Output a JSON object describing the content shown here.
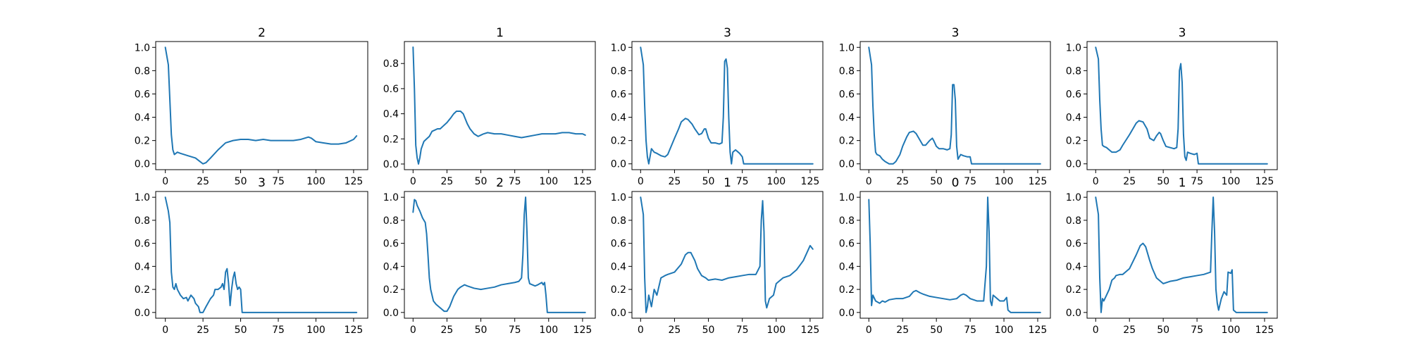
{
  "colors": {
    "line": "#1f77b4",
    "axes": "#000000",
    "background": "#ffffff"
  },
  "chart_data": [
    {
      "type": "line",
      "title": "2",
      "xlim": [
        -6.4,
        134.4
      ],
      "ylim": [
        -0.05,
        1.05
      ],
      "xticks": [
        0,
        25,
        50,
        75,
        100,
        125
      ],
      "yticks": [
        0.0,
        0.2,
        0.4,
        0.6,
        0.8,
        1.0
      ],
      "ytick_decimals": 1,
      "x": [
        0,
        2,
        3,
        4,
        5,
        6,
        8,
        10,
        15,
        20,
        23,
        25,
        27,
        30,
        35,
        40,
        45,
        50,
        55,
        60,
        65,
        70,
        75,
        80,
        85,
        90,
        95,
        97,
        100,
        105,
        110,
        115,
        120,
        125,
        127
      ],
      "y": [
        1.0,
        0.85,
        0.55,
        0.25,
        0.12,
        0.08,
        0.1,
        0.09,
        0.07,
        0.05,
        0.02,
        0.0,
        0.01,
        0.05,
        0.12,
        0.18,
        0.2,
        0.21,
        0.21,
        0.2,
        0.21,
        0.2,
        0.2,
        0.2,
        0.2,
        0.21,
        0.23,
        0.22,
        0.19,
        0.18,
        0.17,
        0.17,
        0.18,
        0.21,
        0.24
      ]
    },
    {
      "type": "line",
      "title": "1",
      "xlim": [
        -6.4,
        134.4
      ],
      "ylim": [
        -0.045,
        0.975
      ],
      "xticks": [
        0,
        25,
        50,
        75,
        100,
        125
      ],
      "yticks": [
        0.0,
        0.2,
        0.4,
        0.6,
        0.8
      ],
      "ytick_decimals": 1,
      "x": [
        0,
        1,
        2,
        3,
        4,
        5,
        6,
        8,
        10,
        12,
        14,
        16,
        18,
        20,
        22,
        25,
        28,
        30,
        32,
        35,
        37,
        40,
        42,
        45,
        48,
        50,
        52,
        55,
        60,
        65,
        70,
        75,
        80,
        85,
        90,
        95,
        100,
        105,
        110,
        115,
        120,
        125,
        127
      ],
      "y": [
        0.93,
        0.6,
        0.15,
        0.05,
        0.0,
        0.05,
        0.12,
        0.18,
        0.2,
        0.22,
        0.26,
        0.27,
        0.28,
        0.28,
        0.3,
        0.33,
        0.37,
        0.4,
        0.42,
        0.42,
        0.4,
        0.32,
        0.28,
        0.24,
        0.22,
        0.23,
        0.24,
        0.25,
        0.24,
        0.24,
        0.23,
        0.22,
        0.21,
        0.22,
        0.23,
        0.24,
        0.24,
        0.24,
        0.25,
        0.25,
        0.24,
        0.24,
        0.23
      ]
    },
    {
      "type": "line",
      "title": "3",
      "xlim": [
        -6.4,
        134.4
      ],
      "ylim": [
        -0.05,
        1.05
      ],
      "xticks": [
        0,
        25,
        50,
        75,
        100,
        125
      ],
      "yticks": [
        0.0,
        0.2,
        0.4,
        0.6,
        0.8,
        1.0
      ],
      "ytick_decimals": 1,
      "x": [
        0,
        2,
        3,
        4,
        5,
        6,
        8,
        10,
        12,
        15,
        18,
        20,
        25,
        28,
        30,
        33,
        35,
        38,
        40,
        43,
        45,
        47,
        48,
        50,
        52,
        55,
        58,
        60,
        61,
        62,
        63,
        64,
        65,
        66,
        67,
        68,
        70,
        72,
        73,
        75,
        76,
        80,
        90,
        100,
        110,
        120,
        127
      ],
      "y": [
        1.0,
        0.85,
        0.5,
        0.2,
        0.06,
        0.0,
        0.13,
        0.1,
        0.09,
        0.07,
        0.06,
        0.08,
        0.22,
        0.3,
        0.36,
        0.39,
        0.38,
        0.34,
        0.3,
        0.25,
        0.26,
        0.3,
        0.3,
        0.22,
        0.18,
        0.18,
        0.17,
        0.18,
        0.4,
        0.88,
        0.9,
        0.82,
        0.4,
        0.1,
        0.0,
        0.1,
        0.12,
        0.1,
        0.09,
        0.06,
        0.0,
        0.0,
        0.0,
        0.0,
        0.0,
        0.0,
        0.0
      ]
    },
    {
      "type": "line",
      "title": "3",
      "xlim": [
        -6.4,
        134.4
      ],
      "ylim": [
        -0.05,
        1.05
      ],
      "xticks": [
        0,
        25,
        50,
        75,
        100,
        125
      ],
      "yticks": [
        0.0,
        0.2,
        0.4,
        0.6,
        0.8,
        1.0
      ],
      "ytick_decimals": 1,
      "x": [
        0,
        2,
        3,
        4,
        5,
        6,
        8,
        10,
        12,
        15,
        18,
        20,
        23,
        25,
        28,
        30,
        33,
        35,
        38,
        40,
        42,
        45,
        47,
        48,
        50,
        52,
        55,
        58,
        60,
        61,
        62,
        63,
        64,
        65,
        66,
        67,
        68,
        70,
        73,
        75,
        76,
        80,
        90,
        100,
        110,
        120,
        127
      ],
      "y": [
        1.0,
        0.85,
        0.5,
        0.25,
        0.1,
        0.08,
        0.07,
        0.04,
        0.02,
        0.0,
        0.0,
        0.02,
        0.08,
        0.15,
        0.23,
        0.27,
        0.28,
        0.26,
        0.2,
        0.16,
        0.16,
        0.2,
        0.22,
        0.2,
        0.15,
        0.13,
        0.13,
        0.12,
        0.13,
        0.25,
        0.68,
        0.68,
        0.55,
        0.15,
        0.04,
        0.06,
        0.08,
        0.07,
        0.06,
        0.06,
        0.0,
        0.0,
        0.0,
        0.0,
        0.0,
        0.0,
        0.0
      ]
    },
    {
      "type": "line",
      "title": "3",
      "xlim": [
        -6.4,
        134.4
      ],
      "ylim": [
        -0.05,
        1.05
      ],
      "xticks": [
        0,
        25,
        50,
        75,
        100,
        125
      ],
      "yticks": [
        0.0,
        0.2,
        0.4,
        0.6,
        0.8,
        1.0
      ],
      "ytick_decimals": 1,
      "x": [
        0,
        2,
        3,
        4,
        5,
        6,
        8,
        10,
        12,
        15,
        18,
        20,
        25,
        28,
        30,
        32,
        35,
        38,
        40,
        43,
        45,
        47,
        48,
        50,
        52,
        55,
        58,
        60,
        61,
        62,
        63,
        64,
        65,
        66,
        67,
        68,
        70,
        73,
        75,
        76,
        80,
        90,
        100,
        110,
        120,
        127
      ],
      "y": [
        1.0,
        0.9,
        0.55,
        0.3,
        0.16,
        0.15,
        0.14,
        0.12,
        0.1,
        0.1,
        0.12,
        0.16,
        0.25,
        0.31,
        0.35,
        0.37,
        0.36,
        0.3,
        0.22,
        0.2,
        0.24,
        0.27,
        0.26,
        0.2,
        0.15,
        0.14,
        0.13,
        0.14,
        0.3,
        0.8,
        0.86,
        0.7,
        0.25,
        0.06,
        0.03,
        0.1,
        0.09,
        0.08,
        0.09,
        0.0,
        0.0,
        0.0,
        0.0,
        0.0,
        0.0,
        0.0
      ]
    },
    {
      "type": "line",
      "title": "3",
      "xlim": [
        -6.4,
        134.4
      ],
      "ylim": [
        -0.05,
        1.05
      ],
      "xticks": [
        0,
        25,
        50,
        75,
        100,
        125
      ],
      "yticks": [
        0.0,
        0.2,
        0.4,
        0.6,
        0.8,
        1.0
      ],
      "ytick_decimals": 1,
      "x": [
        0,
        2,
        3,
        4,
        5,
        6,
        7,
        8,
        10,
        12,
        14,
        15,
        17,
        19,
        20,
        22,
        23,
        25,
        27,
        30,
        32,
        33,
        35,
        37,
        38,
        39,
        40,
        41,
        42,
        43,
        44,
        45,
        46,
        47,
        48,
        49,
        50,
        51,
        52,
        55,
        60,
        70,
        80,
        90,
        100,
        110,
        120,
        127
      ],
      "y": [
        1.0,
        0.88,
        0.78,
        0.35,
        0.22,
        0.2,
        0.25,
        0.2,
        0.15,
        0.12,
        0.13,
        0.1,
        0.15,
        0.12,
        0.08,
        0.05,
        0.0,
        0.0,
        0.05,
        0.12,
        0.15,
        0.2,
        0.2,
        0.22,
        0.25,
        0.2,
        0.35,
        0.38,
        0.25,
        0.06,
        0.2,
        0.3,
        0.35,
        0.25,
        0.2,
        0.22,
        0.2,
        0.0,
        0.0,
        0.0,
        0.0,
        0.0,
        0.0,
        0.0,
        0.0,
        0.0,
        0.0,
        0.0
      ]
    },
    {
      "type": "line",
      "title": "2",
      "xlim": [
        -6.4,
        134.4
      ],
      "ylim": [
        -0.05,
        1.05
      ],
      "xticks": [
        0,
        25,
        50,
        75,
        100,
        125
      ],
      "yticks": [
        0.0,
        0.2,
        0.4,
        0.6,
        0.8,
        1.0
      ],
      "ytick_decimals": 1,
      "x": [
        0,
        1,
        2,
        3,
        5,
        7,
        9,
        10,
        11,
        12,
        13,
        14,
        15,
        17,
        20,
        23,
        25,
        27,
        30,
        33,
        35,
        38,
        40,
        45,
        50,
        55,
        60,
        65,
        70,
        75,
        78,
        80,
        81,
        82,
        83,
        84,
        85,
        86,
        88,
        90,
        92,
        95,
        96,
        97,
        98,
        99,
        100,
        105,
        110,
        120,
        127
      ],
      "y": [
        0.87,
        0.98,
        0.97,
        0.93,
        0.88,
        0.82,
        0.78,
        0.68,
        0.5,
        0.3,
        0.2,
        0.15,
        0.1,
        0.07,
        0.04,
        0.01,
        0.01,
        0.05,
        0.14,
        0.2,
        0.22,
        0.24,
        0.23,
        0.21,
        0.2,
        0.21,
        0.22,
        0.24,
        0.25,
        0.26,
        0.27,
        0.3,
        0.5,
        0.85,
        1.0,
        0.7,
        0.3,
        0.25,
        0.24,
        0.23,
        0.24,
        0.26,
        0.24,
        0.26,
        0.15,
        0.0,
        0.0,
        0.0,
        0.0,
        0.0,
        0.0
      ]
    },
    {
      "type": "line",
      "title": "1",
      "xlim": [
        -6.4,
        134.4
      ],
      "ylim": [
        -0.05,
        1.05
      ],
      "xticks": [
        0,
        25,
        50,
        75,
        100,
        125
      ],
      "yticks": [
        0.0,
        0.2,
        0.4,
        0.6,
        0.8,
        1.0
      ],
      "ytick_decimals": 1,
      "x": [
        0,
        2,
        3,
        4,
        5,
        6,
        8,
        10,
        12,
        14,
        15,
        18,
        20,
        25,
        30,
        33,
        35,
        37,
        40,
        42,
        45,
        48,
        50,
        55,
        60,
        65,
        70,
        75,
        80,
        85,
        88,
        89,
        90,
        91,
        92,
        93,
        94,
        95,
        98,
        100,
        105,
        110,
        115,
        120,
        125,
        127
      ],
      "y": [
        1.0,
        0.85,
        0.3,
        0.0,
        0.05,
        0.15,
        0.05,
        0.2,
        0.15,
        0.25,
        0.3,
        0.32,
        0.33,
        0.35,
        0.42,
        0.5,
        0.52,
        0.52,
        0.45,
        0.38,
        0.32,
        0.3,
        0.28,
        0.29,
        0.28,
        0.3,
        0.31,
        0.32,
        0.33,
        0.33,
        0.4,
        0.8,
        0.97,
        0.7,
        0.1,
        0.04,
        0.08,
        0.12,
        0.15,
        0.25,
        0.3,
        0.32,
        0.37,
        0.45,
        0.58,
        0.55
      ]
    },
    {
      "type": "line",
      "title": "0",
      "xlim": [
        -6.4,
        134.4
      ],
      "ylim": [
        -0.05,
        1.05
      ],
      "xticks": [
        0,
        25,
        50,
        75,
        100,
        125
      ],
      "yticks": [
        0.0,
        0.2,
        0.4,
        0.6,
        0.8,
        1.0
      ],
      "ytick_decimals": 1,
      "x": [
        0,
        1,
        2,
        3,
        5,
        8,
        10,
        12,
        15,
        20,
        25,
        30,
        33,
        35,
        38,
        40,
        45,
        50,
        55,
        60,
        65,
        68,
        70,
        72,
        75,
        80,
        85,
        87,
        88,
        89,
        90,
        91,
        92,
        95,
        97,
        100,
        102,
        103,
        105,
        110,
        120,
        127
      ],
      "y": [
        0.98,
        0.6,
        0.06,
        0.15,
        0.1,
        0.08,
        0.1,
        0.09,
        0.11,
        0.12,
        0.12,
        0.14,
        0.18,
        0.19,
        0.17,
        0.16,
        0.14,
        0.13,
        0.12,
        0.11,
        0.12,
        0.15,
        0.16,
        0.15,
        0.12,
        0.1,
        0.1,
        0.4,
        1.0,
        0.7,
        0.1,
        0.06,
        0.15,
        0.12,
        0.1,
        0.1,
        0.13,
        0.02,
        0.0,
        0.0,
        0.0,
        0.0
      ]
    },
    {
      "type": "line",
      "title": "1",
      "xlim": [
        -6.4,
        134.4
      ],
      "ylim": [
        -0.05,
        1.05
      ],
      "xticks": [
        0,
        25,
        50,
        75,
        100,
        125
      ],
      "yticks": [
        0.0,
        0.2,
        0.4,
        0.6,
        0.8,
        1.0
      ],
      "ytick_decimals": 1,
      "x": [
        0,
        2,
        3,
        4,
        5,
        6,
        8,
        10,
        12,
        14,
        15,
        18,
        20,
        25,
        30,
        33,
        35,
        37,
        40,
        42,
        45,
        48,
        50,
        55,
        60,
        65,
        70,
        75,
        80,
        85,
        86,
        87,
        88,
        89,
        90,
        91,
        93,
        95,
        97,
        98,
        100,
        101,
        102,
        104,
        110,
        120,
        127
      ],
      "y": [
        1.0,
        0.85,
        0.3,
        0.0,
        0.12,
        0.1,
        0.15,
        0.2,
        0.28,
        0.3,
        0.32,
        0.33,
        0.33,
        0.38,
        0.5,
        0.58,
        0.6,
        0.57,
        0.45,
        0.38,
        0.3,
        0.27,
        0.25,
        0.27,
        0.28,
        0.3,
        0.31,
        0.32,
        0.33,
        0.35,
        0.7,
        1.0,
        0.7,
        0.2,
        0.08,
        0.02,
        0.12,
        0.18,
        0.15,
        0.35,
        0.34,
        0.37,
        0.02,
        0.0,
        0.0,
        0.0,
        0.0
      ]
    }
  ]
}
